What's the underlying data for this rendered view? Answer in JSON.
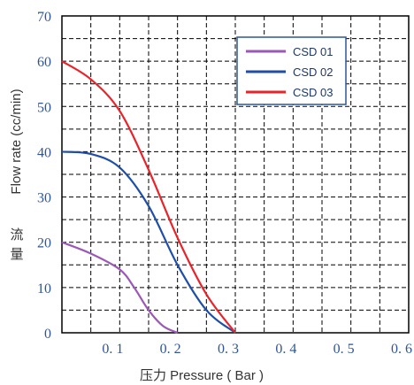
{
  "chart_data": {
    "type": "line",
    "xlabel": "压力 Pressure ( Bar )",
    "ylabel_en": "Flow rate (cc/min)",
    "ylabel_cn": [
      "流",
      "量"
    ],
    "xlim": [
      0,
      0.6
    ],
    "ylim": [
      0,
      70
    ],
    "x_ticks": [
      0.1,
      0.2,
      0.3,
      0.4,
      0.5,
      0.6
    ],
    "x_tick_labels": [
      "0. 1",
      "0. 2",
      "0. 3",
      "0. 4",
      "0. 5",
      "0. 6"
    ],
    "y_ticks": [
      0,
      10,
      20,
      30,
      40,
      50,
      60,
      70
    ],
    "y_tick_labels": [
      "0",
      "10",
      "20",
      "30",
      "40",
      "50",
      "60",
      "70"
    ],
    "grid": "dashed",
    "legend_position": "top-right",
    "series": [
      {
        "name": "CSD  01",
        "color": "#9b59b6",
        "x": [
          0,
          0.05,
          0.1,
          0.125,
          0.15,
          0.175,
          0.2
        ],
        "y": [
          20,
          17.5,
          14,
          10,
          5,
          1.5,
          0
        ]
      },
      {
        "name": "CSD  02",
        "color": "#1f4ea8",
        "x": [
          0,
          0.05,
          0.1,
          0.15,
          0.2,
          0.25,
          0.3
        ],
        "y": [
          40,
          39.5,
          36.5,
          28,
          15,
          5,
          0
        ]
      },
      {
        "name": "CSD  03",
        "color": "#e8242a",
        "x": [
          0,
          0.05,
          0.1,
          0.15,
          0.2,
          0.25,
          0.3
        ],
        "y": [
          60,
          56,
          49,
          36,
          21,
          8.5,
          0
        ]
      }
    ]
  }
}
